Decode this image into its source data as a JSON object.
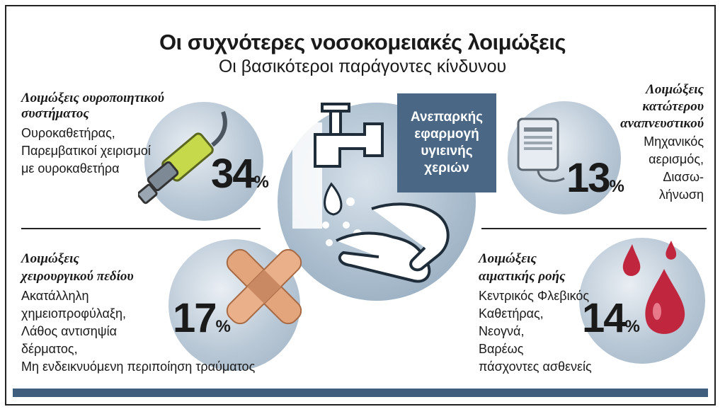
{
  "title": "Οι συχνότερες νοσοκομειακές λοιμώξεις",
  "subtitle": "Οι βασικότεροι παράγοντες κίνδυνου",
  "center": {
    "label": "Ανεπαρκής εφαρμογή υγιεινής χεριών"
  },
  "categories": {
    "urinary": {
      "title_line1": "Λοιμώξεις ουροποιητικού",
      "title_line2": "συστήματος",
      "line1": "Ουροκαθετήρας,",
      "line2": "Παρεμβατικοί χειρισμοί",
      "line3": "με ουροκαθετήρα",
      "percent": "34",
      "icon": "catheter-syringe-icon"
    },
    "respiratory": {
      "title_line1": "Λοιμώξεις",
      "title_line2": "κατώτερου",
      "title_line3": "αναπνευστικού",
      "line1": "Μηχανικός",
      "line2": "αερισμός,",
      "line3": "Διασω-",
      "line4": "λήνωση",
      "percent": "13",
      "icon": "ventilator-bag-icon"
    },
    "surgical": {
      "title_line1": "Λοιμώξεις",
      "title_line2": "χειρουργικού πεδίου",
      "line1": "Ακατάλληλη",
      "line2": "χημειοπροφύλαξη,",
      "line3": "Λάθος αντισηψία",
      "line4": "δέρματος,",
      "line5": "Μη ενδεικνυόμενη περιποίηση τραύματος",
      "percent": "17",
      "icon": "bandage-cross-icon"
    },
    "bloodstream": {
      "title_line1": "Λοιμώξεις",
      "title_line2": "αιματικής ροής",
      "line1": "Κεντρικός Φλεβικός",
      "line2": "Καθετήρας,",
      "line3": "Νεογνά,",
      "line4": "Βαρέως",
      "line5": "πάσχοντες ασθενείς",
      "percent": "14",
      "icon": "blood-drops-icon"
    }
  },
  "percent_sign": "%",
  "colors": {
    "accent": "#4a6785",
    "bar": "#3f5d7d",
    "circle": "#a8bbcc",
    "blood": "#c0273f",
    "bandage": "#e3a57c"
  }
}
